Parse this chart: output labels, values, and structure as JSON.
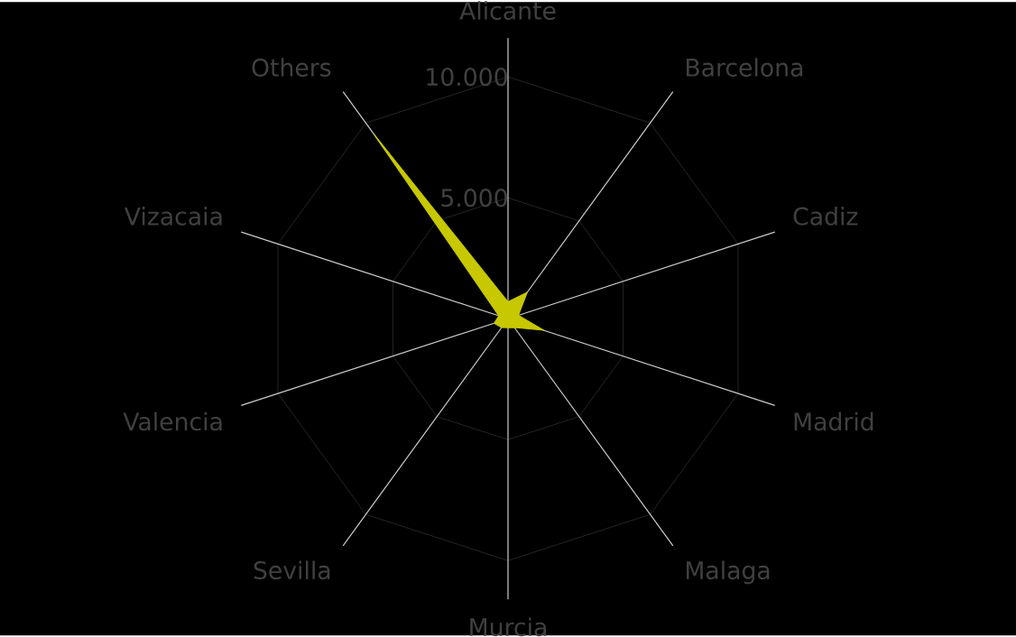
{
  "chart_data": {
    "type": "radar",
    "categories": [
      "Alicante",
      "Barcelona",
      "Cadiz",
      "Madrid",
      "Malaga",
      "Murcia",
      "Sevilla",
      "Valencia",
      "Vizacaia",
      "Others"
    ],
    "series": [
      {
        "color": "#c8c800",
        "values": [
          700,
          1350,
          450,
          1550,
          450,
          370,
          450,
          600,
          400,
          9400
        ]
      }
    ],
    "ylim": [
      0,
      10000
    ],
    "yticks": [
      {
        "value": 5000,
        "label": "5.000"
      },
      {
        "value": 10000,
        "label": "10.000"
      }
    ],
    "grid": true
  }
}
